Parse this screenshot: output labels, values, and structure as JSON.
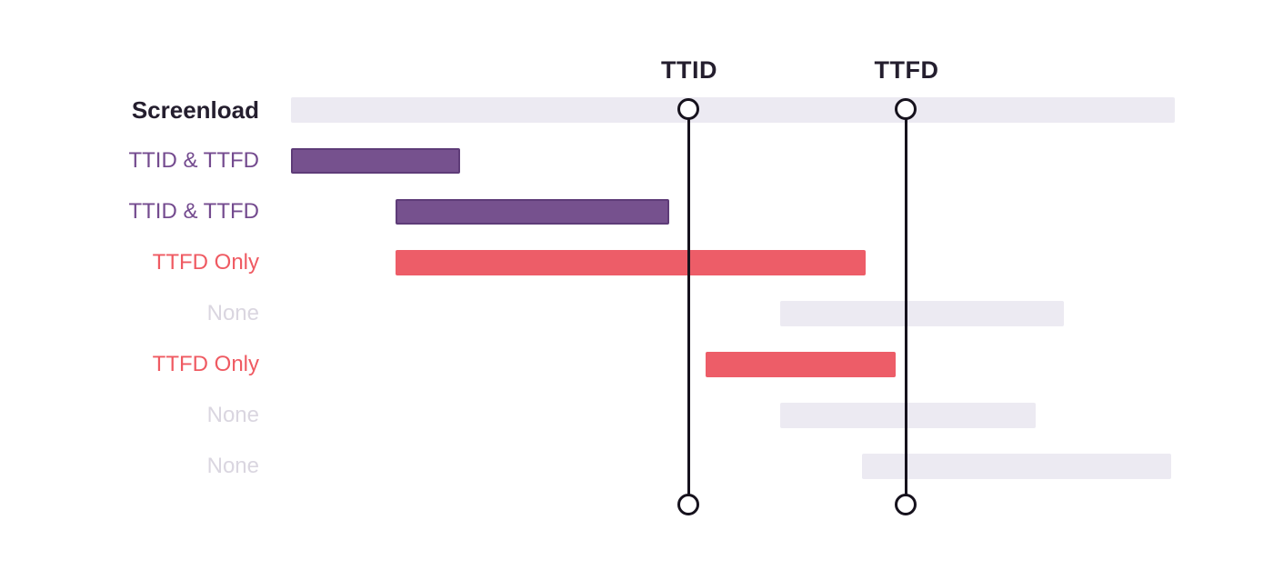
{
  "figure": {
    "description": "Screenload span timeline diagram with TTID and TTFD marker lines"
  },
  "markers": [
    {
      "id": "ttid",
      "label": "TTID",
      "position_pct": 45.06
    },
    {
      "id": "ttfd",
      "label": "TTFD",
      "position_pct": 69.65
    }
  ],
  "rows": [
    {
      "label": "Screenload",
      "label_style": "dark",
      "bar": {
        "start_pct": 0,
        "end_pct": 100,
        "style": "track"
      }
    },
    {
      "label": "TTID & TTFD",
      "label_style": "purple",
      "bar": {
        "start_pct": 0,
        "end_pct": 19.14,
        "style": "purple"
      }
    },
    {
      "label": "TTID & TTFD",
      "label_style": "purple",
      "bar": {
        "start_pct": 11.83,
        "end_pct": 42.8,
        "style": "purple"
      }
    },
    {
      "label": "TTFD Only",
      "label_style": "red",
      "bar": {
        "start_pct": 11.83,
        "end_pct": 65.02,
        "style": "red"
      }
    },
    {
      "label": "None",
      "label_style": "muted",
      "bar": {
        "start_pct": 55.35,
        "end_pct": 87.45,
        "style": "track"
      }
    },
    {
      "label": "TTFD Only",
      "label_style": "red",
      "bar": {
        "start_pct": 46.91,
        "end_pct": 68.42,
        "style": "red"
      }
    },
    {
      "label": "None",
      "label_style": "muted",
      "bar": {
        "start_pct": 55.35,
        "end_pct": 84.26,
        "style": "track"
      }
    },
    {
      "label": "None",
      "label_style": "muted",
      "bar": {
        "start_pct": 64.61,
        "end_pct": 99.6,
        "style": "track"
      }
    }
  ],
  "colors": {
    "track": "#ECEAF2",
    "purple": "#76518E",
    "purple_border": "#5E3C78",
    "red": "#ED5D68",
    "label_dark": "#241E2E",
    "label_purple": "#744B8F",
    "label_red": "#EF5A62",
    "label_muted": "#DAD6E0",
    "marker_line": "#16121D"
  }
}
